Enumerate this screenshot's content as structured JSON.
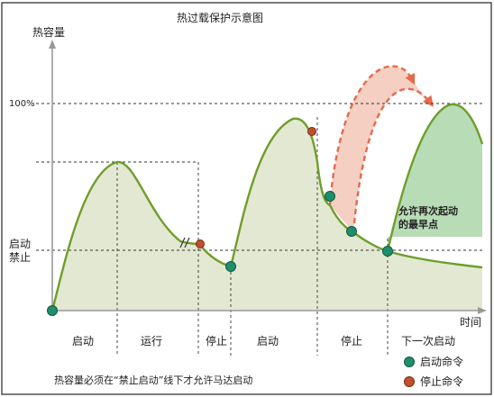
{
  "title": "热过载保护示意图",
  "y_axis_label": "热容量",
  "x_axis_label": "时间",
  "level_100": "100%",
  "level_start": "启动",
  "level_forbid": "禁止",
  "phases": [
    "启动",
    "运行",
    "停止",
    "启动",
    "停止",
    "下一次启动"
  ],
  "annotation": {
    "line1": "允许再次起动",
    "line2": "的最早点"
  },
  "footer_note": "热容量必须在“禁止启动”线下才允许马达启动",
  "legend": [
    {
      "label": "启动命令",
      "color": "#1e8e6c"
    },
    {
      "label": "停止命令",
      "color": "#c0502e"
    }
  ],
  "colors": {
    "curve": "#6e9e2a",
    "fill": "#e3e8d2",
    "green_fill": "#b8dcb6",
    "red_arrow": "#e36a4d",
    "red_fill": "#f2c7b7",
    "start_marker": "#1e8e6c",
    "stop_marker": "#c0502e"
  }
}
